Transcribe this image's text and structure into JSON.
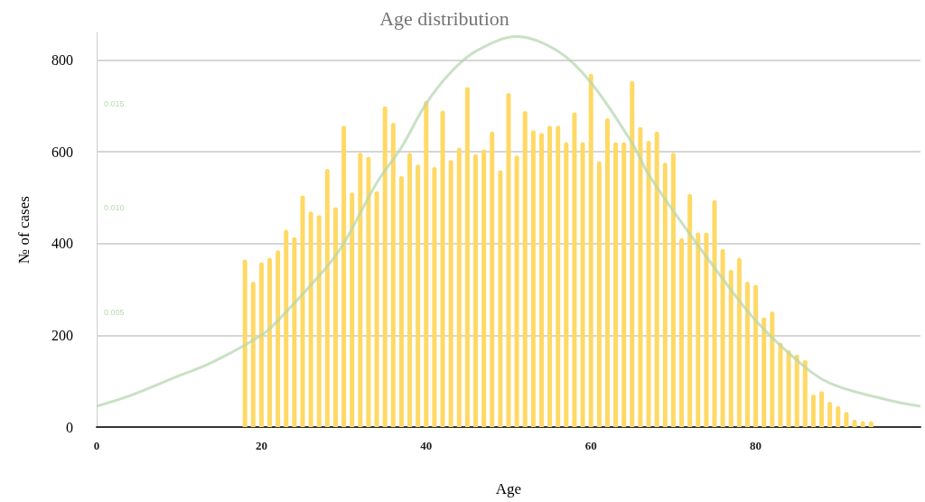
{
  "chart_data": {
    "type": "bar",
    "title": "Age distribution",
    "xlabel": "Age",
    "ylabel": "№ of cases",
    "xlim": [
      0,
      100
    ],
    "xticks": [
      0,
      20,
      40,
      60,
      80
    ],
    "ylim": [
      0,
      860
    ],
    "yticks": [
      0,
      200,
      400,
      600,
      800
    ],
    "y2lim": [
      -0.0005,
      0.0184
    ],
    "y2ticks": [
      {
        "value": 0.005,
        "label": "0.005"
      },
      {
        "value": 0.01,
        "label": "0.010"
      },
      {
        "value": 0.015,
        "label": "0.015"
      }
    ],
    "grid": "y",
    "series": [
      {
        "color": "#ffd966",
        "x": [
          18,
          19,
          20,
          21,
          22,
          23,
          24,
          25,
          26,
          27,
          28,
          29,
          30,
          31,
          32,
          33,
          34,
          35,
          36,
          37,
          38,
          39,
          40,
          41,
          42,
          43,
          44,
          45,
          46,
          47,
          48,
          49,
          50,
          51,
          52,
          53,
          54,
          55,
          56,
          57,
          58,
          59,
          60,
          61,
          62,
          63,
          64,
          65,
          66,
          67,
          68,
          69,
          70,
          71,
          72,
          73,
          74,
          75,
          76,
          77,
          78,
          79,
          80,
          81,
          82,
          83,
          84,
          85,
          86,
          87,
          88,
          89,
          90,
          91,
          92,
          93,
          94
        ],
        "values": [
          365,
          317,
          359,
          369,
          385,
          430,
          414,
          505,
          470,
          462,
          563,
          479,
          657,
          511,
          598,
          589,
          514,
          699,
          663,
          547,
          598,
          572,
          711,
          567,
          690,
          582,
          609,
          741,
          595,
          605,
          644,
          560,
          728,
          592,
          689,
          647,
          641,
          657,
          657,
          621,
          686,
          621,
          770,
          579,
          673,
          621,
          621,
          754,
          654,
          624,
          644,
          576,
          598,
          412,
          508,
          424,
          424,
          495,
          388,
          343,
          369,
          317,
          310,
          239,
          252,
          184,
          168,
          158,
          146,
          71,
          78,
          55,
          46,
          33,
          16,
          13,
          13
        ]
      },
      {
        "type": "line",
        "axis": "y2",
        "color": "#b7d7b0",
        "x": [
          0,
          4,
          9,
          14,
          20,
          22,
          28,
          30,
          34,
          37,
          40,
          43,
          46,
          51,
          56,
          60,
          65,
          67,
          71,
          76,
          80,
          85,
          89,
          96,
          100
        ],
        "values": [
          0.0005,
          0.001,
          0.0018,
          0.0026,
          0.0039,
          0.0046,
          0.0072,
          0.0083,
          0.0112,
          0.0129,
          0.015,
          0.0165,
          0.0175,
          0.0182,
          0.0175,
          0.016,
          0.0131,
          0.0116,
          0.0093,
          0.0066,
          0.0046,
          0.0027,
          0.0016,
          0.0008,
          0.0005
        ]
      }
    ]
  }
}
